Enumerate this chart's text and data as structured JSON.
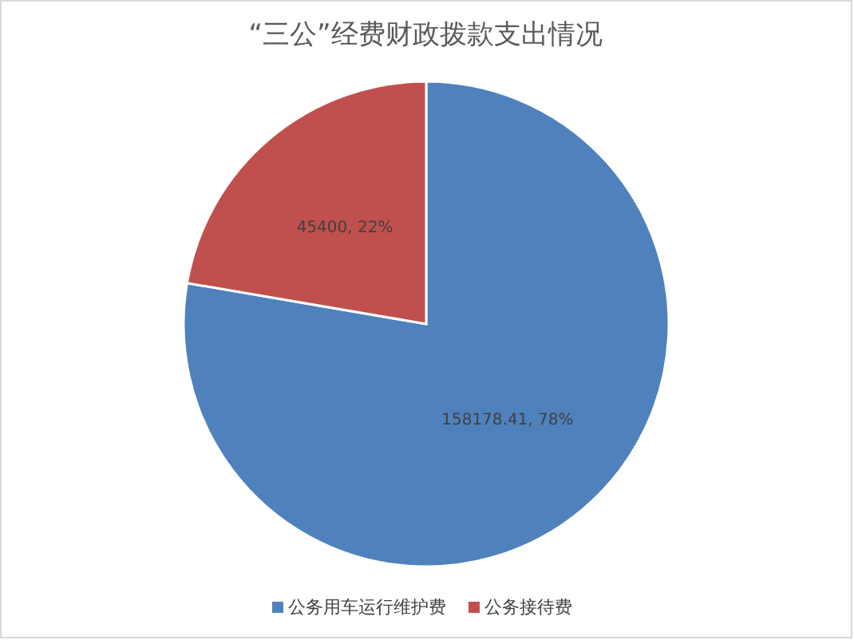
{
  "chart_data": {
    "type": "pie",
    "title": "“三公”经费财政拨款支出情况",
    "categories": [
      "公务用车运行维护费",
      "公务接待费"
    ],
    "values": [
      158178.41,
      45400
    ],
    "colors": [
      "#4f81bd",
      "#c0504d"
    ],
    "value_labels": [
      "158178.41, 78%",
      "45400, 22%"
    ],
    "legend": "bottom"
  }
}
